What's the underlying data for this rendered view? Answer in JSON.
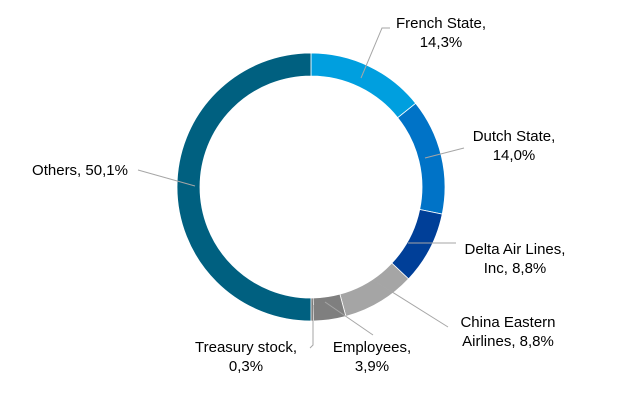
{
  "chart_data": {
    "type": "pie",
    "style": "donut",
    "start_angle_deg": 0,
    "direction": "clockwise",
    "legend": "none",
    "slices": [
      {
        "name": "French State",
        "value": 14.3,
        "label_lines": [
          "French State,",
          "14,3%"
        ],
        "color": "#009fdf"
      },
      {
        "name": "Dutch State",
        "value": 14.0,
        "label_lines": [
          "Dutch State,",
          "14,0%"
        ],
        "color": "#0073c7"
      },
      {
        "name": "Delta Air Lines, Inc",
        "value": 8.8,
        "label_lines": [
          "Delta Air Lines,",
          "Inc, 8,8%"
        ],
        "color": "#003f98"
      },
      {
        "name": "China Eastern Airlines",
        "value": 8.8,
        "label_lines": [
          "China Eastern",
          "Airlines, 8,8%"
        ],
        "color": "#a5a5a5"
      },
      {
        "name": "Employees",
        "value": 3.9,
        "label_lines": [
          "Employees,",
          "3,9%"
        ],
        "color": "#7f7f7f"
      },
      {
        "name": "Treasury stock",
        "value": 0.3,
        "label_lines": [
          "Treasury stock,",
          "0,3%"
        ],
        "color": "#595959"
      },
      {
        "name": "Others",
        "value": 50.1,
        "label_lines": [
          "Others, 50,1%"
        ],
        "color": "#006080"
      }
    ]
  }
}
